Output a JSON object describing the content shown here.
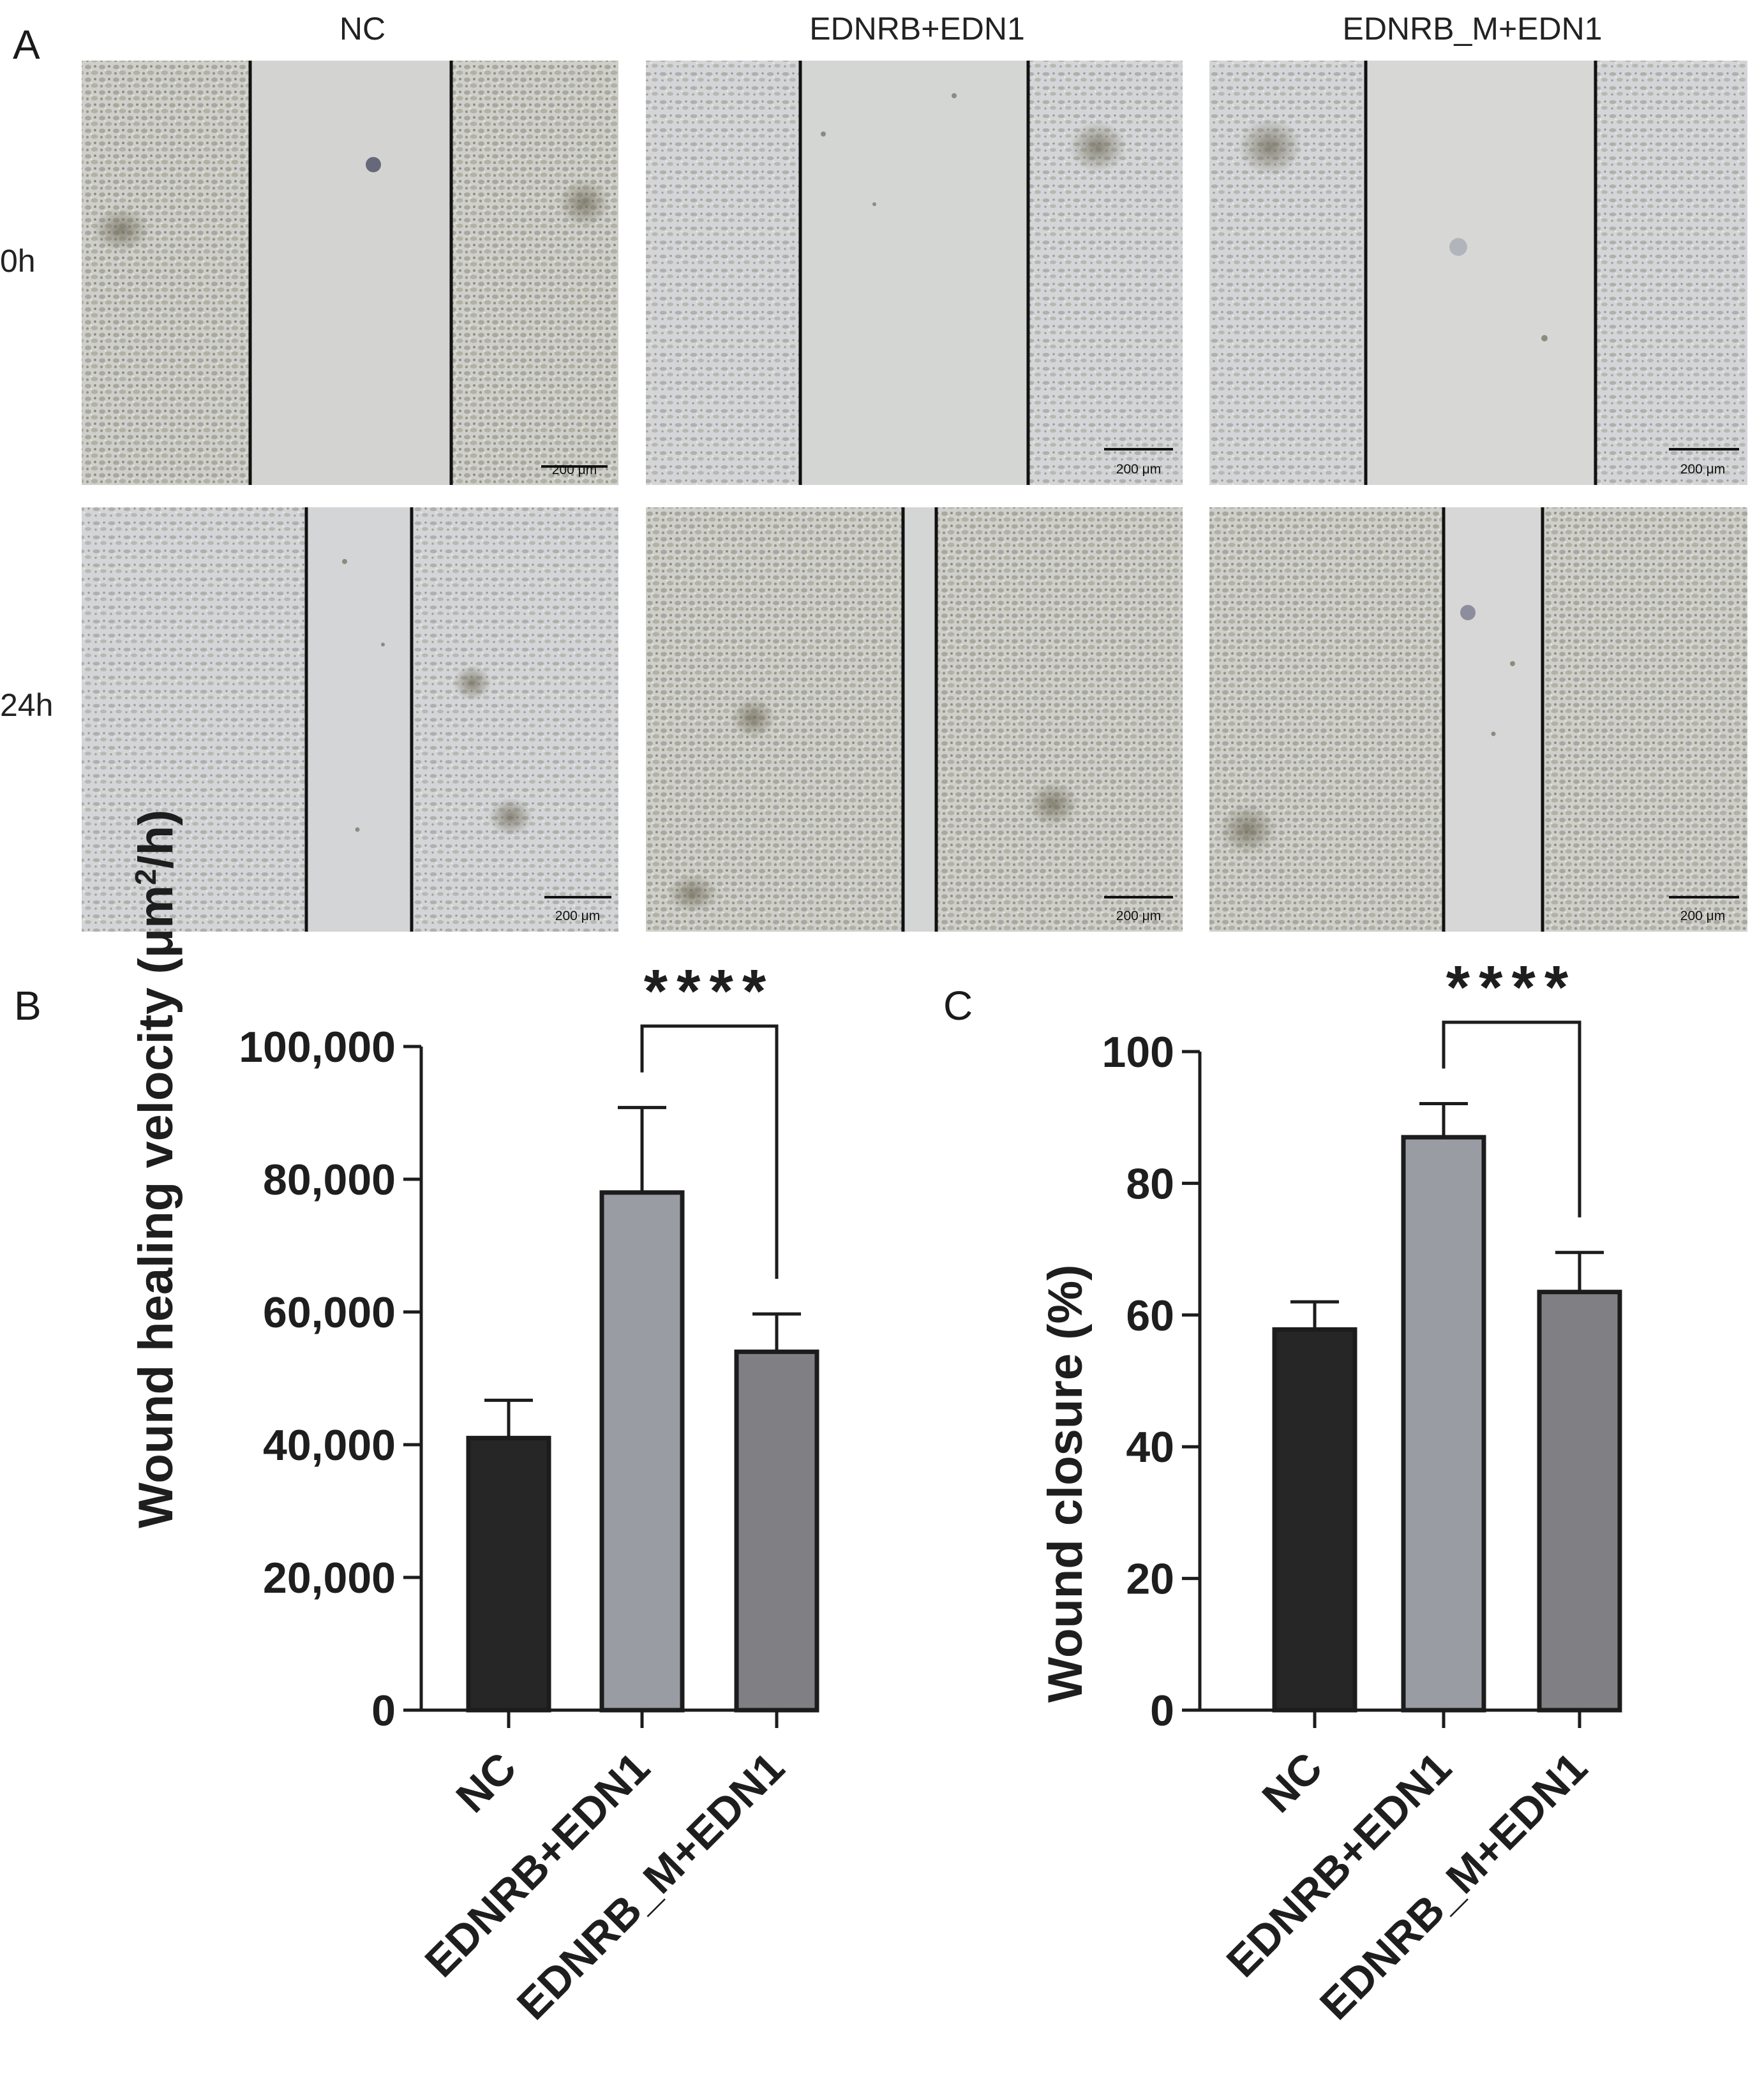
{
  "panel_a": {
    "label": "A",
    "columns": [
      "NC",
      "EDNRB+EDN1",
      "EDNRB_M+EDN1"
    ],
    "rows": [
      "0h",
      "24h"
    ],
    "scale_bar_label": "200 μm"
  },
  "colors": {
    "NC": "#262626",
    "EDNRB+EDN1": "#999ca3",
    "EDNRB_M+EDN1": "#808084",
    "outline": "#1c1c1c"
  },
  "chart_data": [
    {
      "type": "bar",
      "panel_label": "B",
      "categories": [
        "NC",
        "EDNRB+EDN1",
        "EDNRB_M+EDN1"
      ],
      "values": [
        41000,
        78000,
        54000
      ],
      "errors": [
        5700,
        12800,
        5700
      ],
      "ylabel_main": "Wound healing velocity (μm",
      "ylabel_sup": "2",
      "ylabel_tail": "/h)",
      "ylim": [
        0,
        100000
      ],
      "yticks": [
        0,
        20000,
        40000,
        60000,
        80000,
        100000
      ],
      "ytick_labels": [
        "0",
        "20,000",
        "40,000",
        "60,000",
        "80,000",
        "100,000"
      ],
      "significance": {
        "from": 1,
        "to": 2,
        "label": "****"
      }
    },
    {
      "type": "bar",
      "panel_label": "C",
      "categories": [
        "NC",
        "EDNRB+EDN1",
        "EDNRB_M+EDN1"
      ],
      "values": [
        57.8,
        87,
        63.5
      ],
      "errors": [
        4.2,
        5.1,
        6.0
      ],
      "ylabel": "Wound closure (%)",
      "ylim": [
        0,
        100
      ],
      "yticks": [
        0,
        20,
        40,
        60,
        80,
        100
      ],
      "ytick_labels": [
        "0",
        "20",
        "40",
        "60",
        "80",
        "100"
      ],
      "significance": {
        "from": 1,
        "to": 2,
        "label": "****"
      }
    }
  ]
}
